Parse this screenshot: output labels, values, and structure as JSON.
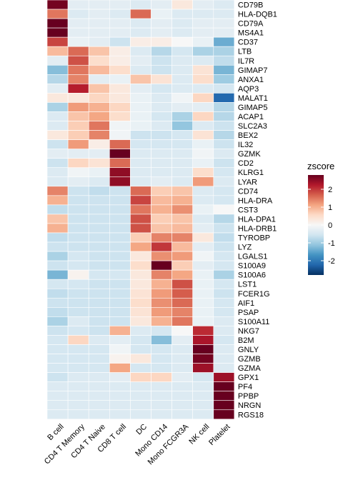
{
  "chart_data": {
    "type": "heatmap",
    "title": "",
    "xlabel": "",
    "ylabel": "",
    "x_categories": [
      "B cell",
      "CD4 T Memory",
      "CD4 T Naive",
      "CD8 T cell",
      "DC",
      "Mono CD14",
      "Mono FCGR3A",
      "NK cell",
      "Platelet"
    ],
    "y_categories": [
      "CD79B",
      "HLA-DQB1",
      "CD79A",
      "MS4A1",
      "CD37",
      "LTB",
      "IL7R",
      "GIMAP7",
      "ANXA1",
      "AQP3",
      "MALAT1",
      "GIMAP5",
      "ACAP1",
      "SLC2A3",
      "BEX2",
      "IL32",
      "GZMK",
      "CD2",
      "KLRG1",
      "LYAR",
      "CD74",
      "HLA-DRA",
      "CST3",
      "HLA-DPA1",
      "HLA-DRB1",
      "TYROBP",
      "LYZ",
      "LGALS1",
      "S100A9",
      "S100A6",
      "LST1",
      "FCER1G",
      "AIF1",
      "PSAP",
      "S100A11",
      "NKG7",
      "B2M",
      "GNLY",
      "GZMB",
      "GZMA",
      "GPX1",
      "PF4",
      "PPBP",
      "NRGN",
      "RGS18"
    ],
    "values": [
      [
        2.7,
        -0.3,
        -0.3,
        -0.3,
        -0.4,
        -0.3,
        0.3,
        -0.3,
        -0.4
      ],
      [
        1.5,
        -0.4,
        -0.3,
        -0.4,
        1.6,
        -0.2,
        -0.4,
        -0.4,
        -0.4
      ],
      [
        2.8,
        -0.3,
        -0.3,
        -0.3,
        -0.4,
        -0.3,
        -0.4,
        -0.3,
        -0.3
      ],
      [
        2.8,
        -0.3,
        -0.3,
        -0.3,
        -0.4,
        -0.3,
        -0.4,
        -0.3,
        -0.3
      ],
      [
        1.9,
        -0.2,
        -0.3,
        -0.6,
        0.2,
        0.2,
        0.0,
        -0.2,
        -1.4
      ],
      [
        0.9,
        1.6,
        0.8,
        0.2,
        -0.4,
        -0.8,
        -0.5,
        -0.9,
        -0.9
      ],
      [
        -0.3,
        1.8,
        0.5,
        0.2,
        -0.3,
        -0.6,
        -0.4,
        -0.4,
        -0.7
      ],
      [
        -1.2,
        1.5,
        0.9,
        0.5,
        -0.4,
        -0.6,
        -0.4,
        0.4,
        -1.3
      ],
      [
        -0.8,
        1.4,
        -0.3,
        -0.2,
        0.8,
        0.4,
        -0.4,
        0.5,
        -1.0
      ],
      [
        -0.3,
        2.2,
        0.8,
        0.3,
        -0.3,
        -0.5,
        -0.4,
        -0.4,
        -0.5
      ],
      [
        0.3,
        0.3,
        0.6,
        0.3,
        -0.2,
        -0.4,
        -0.1,
        0.6,
        -2.2
      ],
      [
        -0.9,
        1.2,
        1.0,
        0.6,
        -0.2,
        -0.4,
        -0.3,
        -0.3,
        -0.8
      ],
      [
        -0.4,
        0.8,
        1.1,
        0.5,
        -0.2,
        -0.5,
        -0.9,
        0.6,
        -0.8
      ],
      [
        -0.4,
        0.7,
        1.5,
        -0.1,
        -0.2,
        -0.4,
        -1.1,
        -0.4,
        -0.6
      ],
      [
        0.3,
        0.7,
        1.4,
        -0.1,
        -0.6,
        -0.6,
        -0.5,
        0.4,
        -0.8
      ],
      [
        -0.6,
        1.2,
        0.2,
        1.6,
        -0.5,
        -0.5,
        -0.5,
        -0.2,
        -0.6
      ],
      [
        -0.3,
        -0.3,
        -0.3,
        2.8,
        -0.4,
        -0.4,
        -0.4,
        -0.1,
        -0.4
      ],
      [
        -0.6,
        0.6,
        0.4,
        1.6,
        -0.4,
        -0.4,
        -0.4,
        -0.2,
        -0.6
      ],
      [
        -0.4,
        -0.1,
        -0.2,
        2.5,
        -0.4,
        -0.4,
        -0.4,
        0.5,
        -0.5
      ],
      [
        -0.4,
        -0.3,
        -0.4,
        2.5,
        -0.4,
        -0.3,
        -0.4,
        1.2,
        -0.4
      ],
      [
        1.4,
        -0.6,
        -0.7,
        -0.6,
        1.6,
        0.7,
        0.8,
        -0.4,
        -0.5
      ],
      [
        1.0,
        -0.6,
        -0.6,
        -0.6,
        1.9,
        0.9,
        1.0,
        -0.4,
        -0.5
      ],
      [
        -0.7,
        -0.6,
        -0.6,
        -0.6,
        1.5,
        1.0,
        1.3,
        -0.2,
        0.0
      ],
      [
        0.8,
        -0.6,
        -0.6,
        -0.6,
        1.8,
        0.7,
        0.8,
        -0.4,
        -0.8
      ],
      [
        1.0,
        -0.6,
        -0.6,
        -0.6,
        1.8,
        0.8,
        0.9,
        -0.3,
        -0.6
      ],
      [
        -0.7,
        -0.6,
        -0.6,
        -0.6,
        0.7,
        1.4,
        1.4,
        0.3,
        -0.7
      ],
      [
        -0.6,
        -0.6,
        -0.6,
        -0.6,
        1.1,
        2.0,
        0.9,
        -0.3,
        -0.6
      ],
      [
        -0.9,
        -0.5,
        -0.6,
        -0.6,
        0.3,
        1.3,
        1.2,
        -0.1,
        -0.5
      ],
      [
        -0.6,
        -0.5,
        -0.6,
        -0.6,
        0.5,
        2.8,
        0.7,
        -0.3,
        -0.5
      ],
      [
        -1.3,
        0.1,
        -0.5,
        -0.5,
        0.3,
        1.4,
        1.1,
        -0.2,
        -0.9
      ],
      [
        -0.5,
        -0.5,
        -0.6,
        -0.6,
        0.3,
        1.0,
        1.8,
        -0.2,
        -0.5
      ],
      [
        -0.7,
        -0.6,
        -0.6,
        -0.6,
        0.4,
        1.2,
        1.7,
        -0.2,
        -0.6
      ],
      [
        -0.6,
        -0.6,
        -0.6,
        -0.6,
        0.5,
        1.3,
        1.6,
        -0.2,
        -0.5
      ],
      [
        -0.7,
        -0.6,
        -0.6,
        -0.6,
        0.4,
        1.2,
        1.4,
        -0.2,
        -0.5
      ],
      [
        -0.9,
        -0.4,
        -0.6,
        -0.6,
        0.3,
        1.0,
        1.5,
        -0.2,
        -0.4
      ],
      [
        -0.6,
        -0.5,
        -0.6,
        1.0,
        -0.4,
        -0.5,
        0.0,
        2.1,
        -0.4
      ],
      [
        -0.5,
        0.6,
        -0.4,
        -0.3,
        -0.5,
        -1.2,
        -0.3,
        2.3,
        -0.5
      ],
      [
        -0.5,
        -0.5,
        -0.5,
        -0.1,
        -0.5,
        -0.5,
        -0.4,
        2.8,
        -0.4
      ],
      [
        -0.5,
        -0.5,
        -0.5,
        0.1,
        0.3,
        -0.5,
        -0.4,
        2.7,
        -0.4
      ],
      [
        -0.5,
        -0.5,
        -0.5,
        1.1,
        -0.5,
        -0.5,
        -0.4,
        2.4,
        -0.4
      ],
      [
        -0.6,
        -0.4,
        -0.4,
        -0.3,
        0.6,
        0.6,
        -0.3,
        -0.5,
        2.4
      ],
      [
        -0.4,
        -0.4,
        -0.4,
        -0.4,
        -0.4,
        -0.4,
        -0.4,
        -0.4,
        2.8
      ],
      [
        -0.4,
        -0.4,
        -0.4,
        -0.4,
        -0.4,
        -0.4,
        -0.4,
        -0.4,
        2.8
      ],
      [
        -0.4,
        -0.4,
        -0.4,
        -0.4,
        -0.4,
        -0.4,
        -0.4,
        -0.4,
        2.8
      ],
      [
        -0.4,
        -0.4,
        -0.4,
        -0.4,
        -0.4,
        -0.4,
        -0.4,
        -0.4,
        2.8
      ]
    ],
    "color_range": [
      -2.8,
      2.8
    ],
    "color_scale": [
      "#053061",
      "#2166AC",
      "#4393C3",
      "#92C5DE",
      "#D1E5F0",
      "#F7F7F7",
      "#FDDBC7",
      "#F4A582",
      "#D6604D",
      "#B2182B",
      "#67001F"
    ],
    "legend": {
      "title": "zscore",
      "placement": "right",
      "ticks": [
        2,
        1,
        0,
        -1,
        -2
      ],
      "tick_labels": [
        "2",
        "1",
        "0",
        "-1",
        "-2"
      ]
    },
    "grid": true
  }
}
